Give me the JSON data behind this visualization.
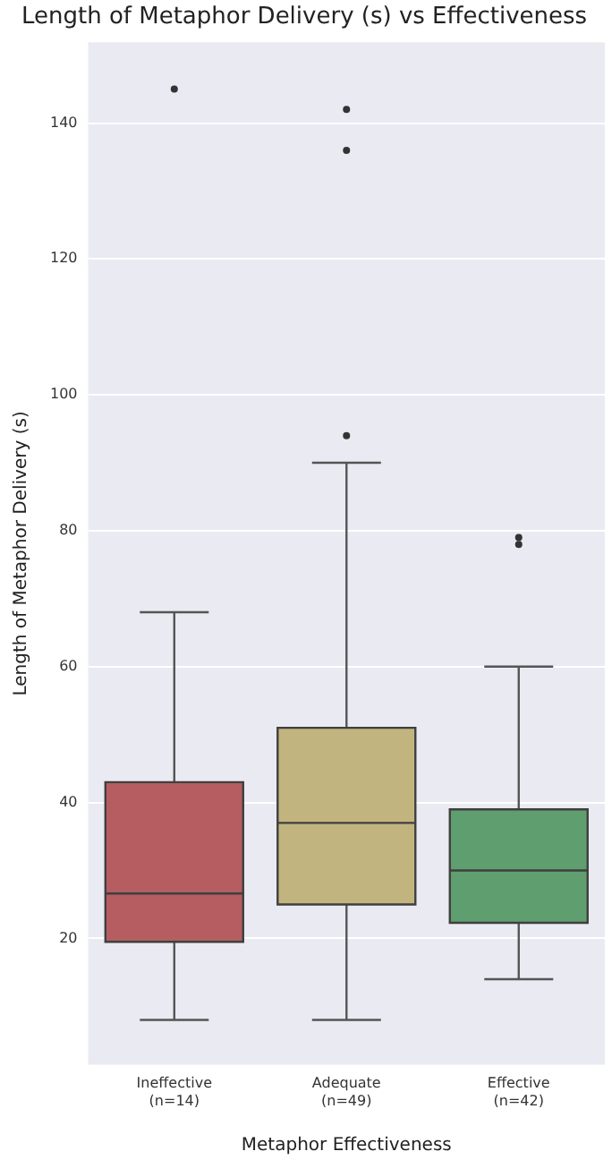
{
  "chart_data": {
    "type": "box",
    "title": "Length of Metaphor Delivery (s) vs Effectiveness",
    "xlabel": "Metaphor Effectiveness",
    "ylabel": "Length of Metaphor Delivery (s)",
    "categories": [
      "Ineffective\n(n=14)",
      "Adequate\n(n=49)",
      "Effective\n(n=42)"
    ],
    "colors": [
      "#b55d60",
      "#c2b47f",
      "#5f9e6e"
    ],
    "boxes": [
      {
        "low": 8,
        "q1": 19.5,
        "median": 26.6,
        "q3": 43,
        "high": 68,
        "outliers": [
          145
        ]
      },
      {
        "low": 8,
        "q1": 25,
        "median": 37,
        "q3": 51,
        "high": 90,
        "outliers": [
          142,
          136,
          94
        ]
      },
      {
        "low": 14,
        "q1": 22.3,
        "median": 30,
        "q3": 39,
        "high": 60,
        "outliers": [
          79,
          78
        ]
      }
    ],
    "ylim": [
      1.4,
      151.9
    ],
    "yticks": [
      20,
      40,
      60,
      80,
      100,
      120,
      140
    ],
    "grid": "y",
    "legend": false
  }
}
